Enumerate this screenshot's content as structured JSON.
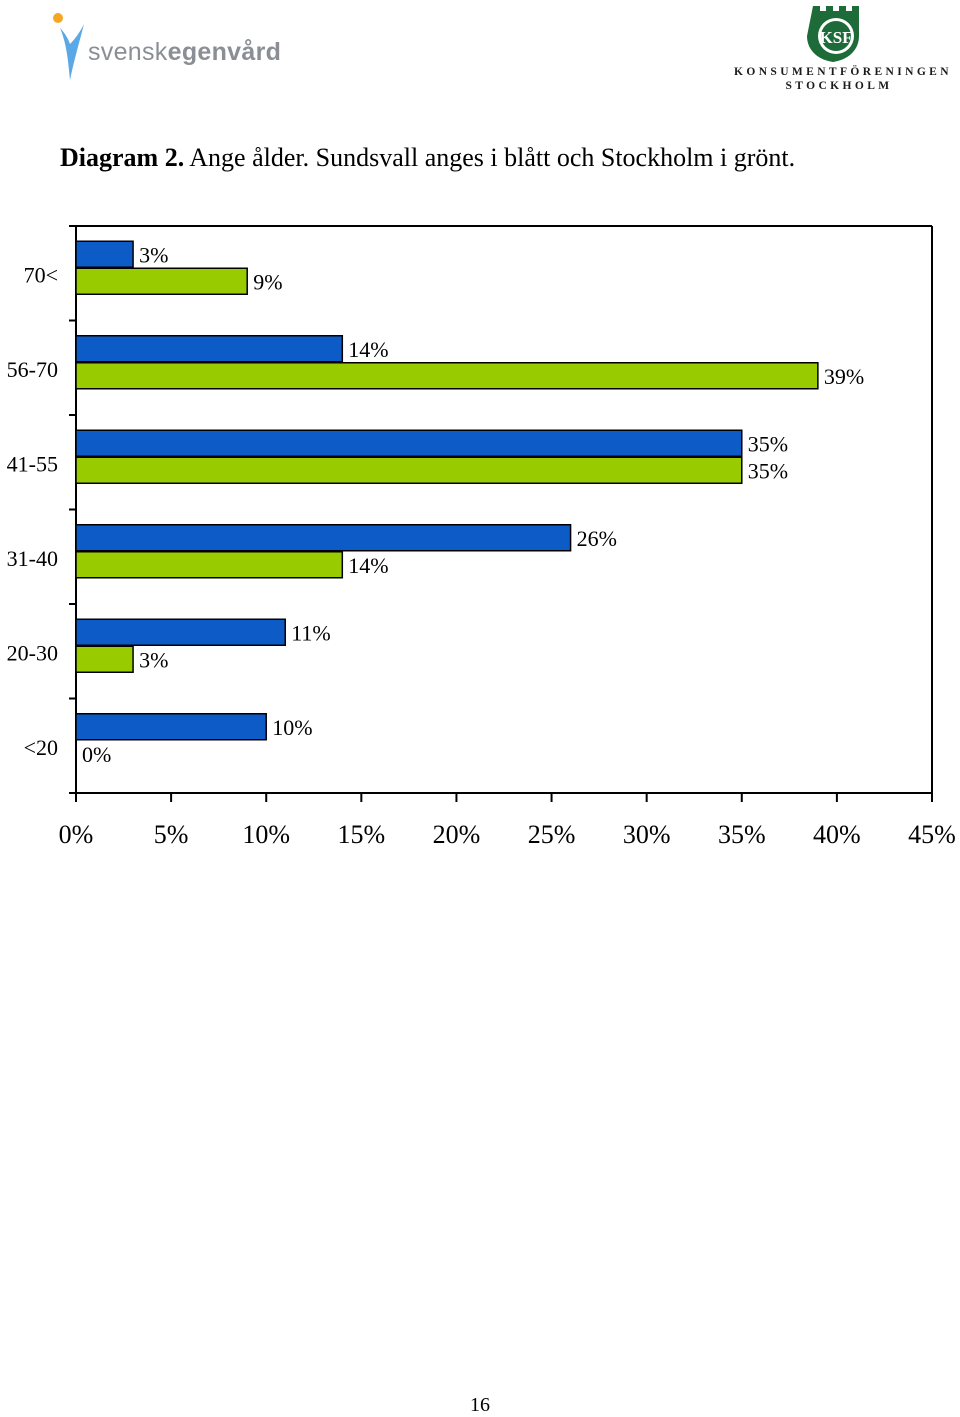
{
  "header": {
    "left_logo": {
      "text_light": "svensk",
      "text_bold": "egenvård",
      "icon": "person-figure-icon"
    },
    "right_logo": {
      "line1": "KONSUMENTFÖRENINGEN",
      "line2": "STOCKHOLM",
      "emblem_text": "KSF",
      "icon": "castle-emblem-icon"
    }
  },
  "caption": {
    "label": "Diagram 2.",
    "text": "Ange ålder. Sundsvall anges i blått och Stockholm i grönt."
  },
  "chart_data": {
    "type": "bar",
    "orientation": "horizontal",
    "categories": [
      "70<",
      "56-70",
      "41-55",
      "31-40",
      "20-30",
      "<20"
    ],
    "series": [
      {
        "values": [
          3,
          14,
          35,
          26,
          11,
          10
        ],
        "labels": [
          "3%",
          "14%",
          "35%",
          "26%",
          "11%",
          "10%"
        ],
        "color": "#0d5bc6"
      },
      {
        "values": [
          9,
          39,
          35,
          14,
          3,
          0
        ],
        "labels": [
          "9%",
          "39%",
          "35%",
          "14%",
          "3%",
          "0%"
        ],
        "color": "#99cc00"
      }
    ],
    "xticks": [
      "0%",
      "5%",
      "10%",
      "15%",
      "20%",
      "25%",
      "30%",
      "35%",
      "40%",
      "45%"
    ],
    "xlim": [
      0,
      45
    ],
    "grid": false,
    "legend": "none"
  },
  "page": {
    "number": "16"
  }
}
